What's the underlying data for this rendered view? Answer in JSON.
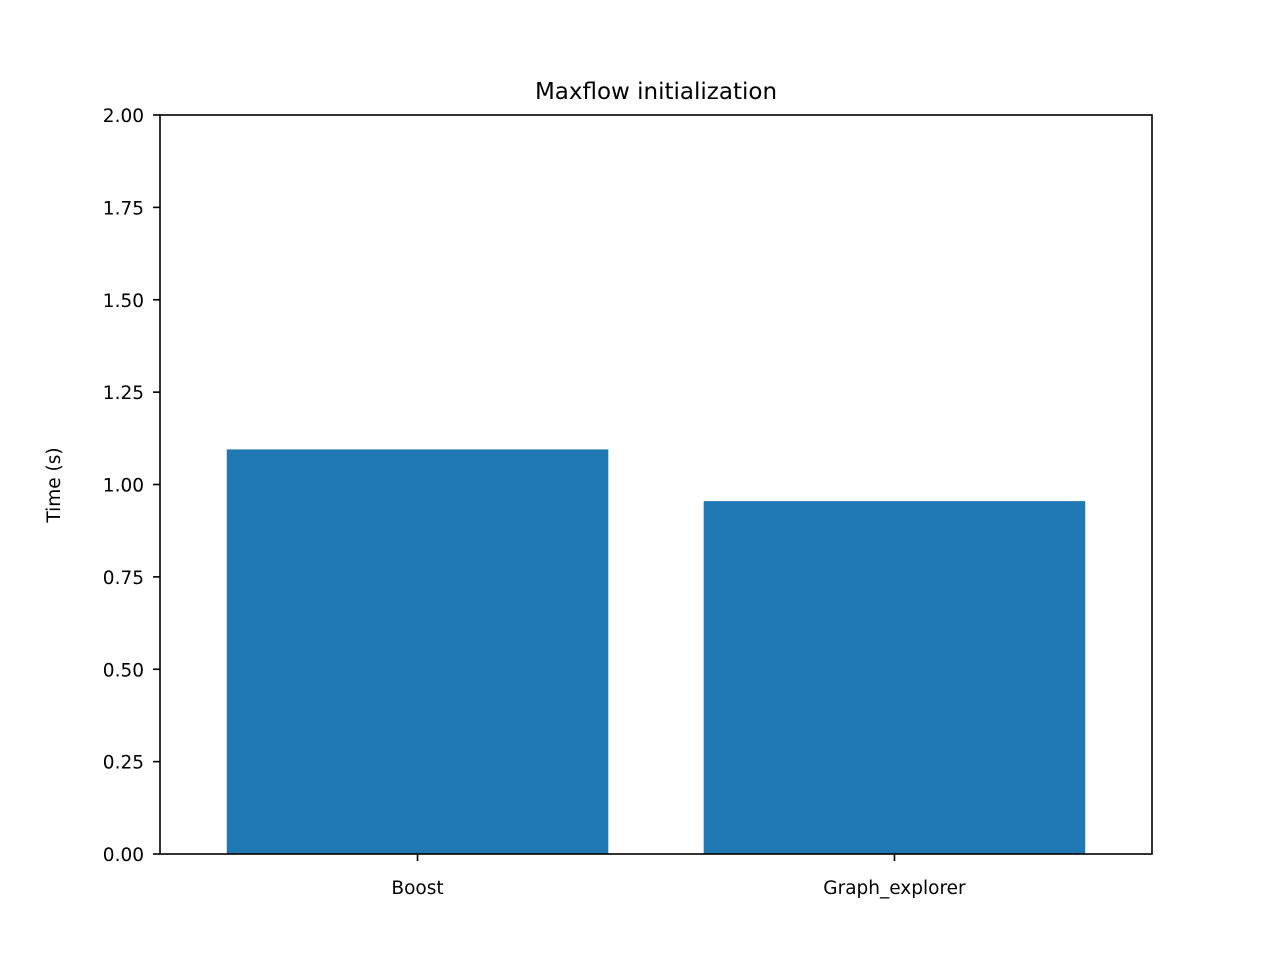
{
  "chart_data": {
    "type": "bar",
    "title": "Maxflow initialization",
    "xlabel": "",
    "ylabel": "Time (s)",
    "categories": [
      "Boost",
      "Graph_explorer"
    ],
    "values": [
      1.095,
      0.955
    ],
    "ylim": [
      0,
      2.0
    ],
    "yticks": [
      "0.00",
      "0.25",
      "0.50",
      "0.75",
      "1.00",
      "1.25",
      "1.50",
      "1.75",
      "2.00"
    ],
    "grid": false,
    "legend": "none",
    "bar_color": "#1f77b4"
  }
}
